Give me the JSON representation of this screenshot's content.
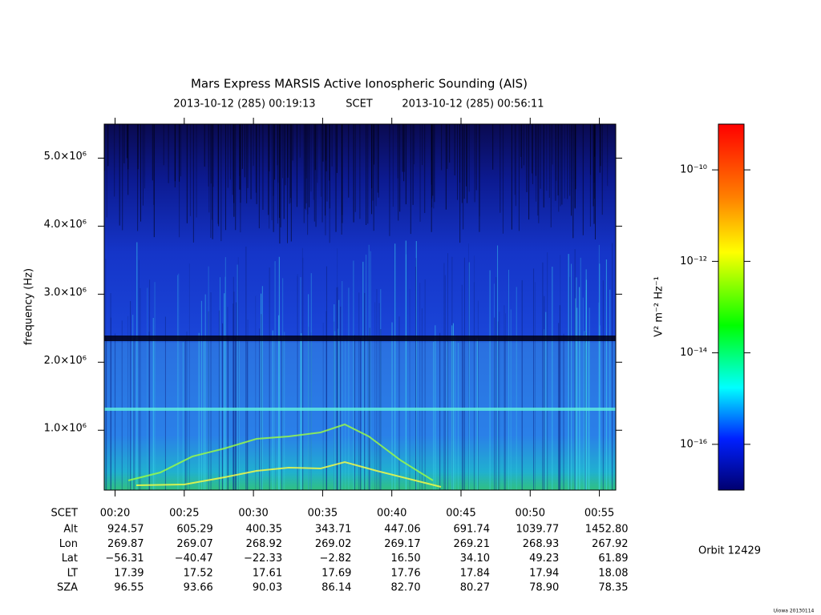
{
  "chart_data": {
    "type": "spectrogram",
    "title": "Mars Express MARSIS Active Ionospheric Sounding (AIS)",
    "time_start": "2013-10-12 (285) 00:19:13",
    "time_frame": "SCET",
    "time_end": "2013-10-12 (285) 00:56:11",
    "ylabel": "frequency (Hz)",
    "ylim": [
      120000,
      5500000
    ],
    "yticks": [
      {
        "value": 1000000,
        "label": "1.0×10⁶"
      },
      {
        "value": 2000000,
        "label": "2.0×10⁶"
      },
      {
        "value": 3000000,
        "label": "3.0×10⁶"
      },
      {
        "value": 4000000,
        "label": "4.0×10⁶"
      },
      {
        "value": 5000000,
        "label": "5.0×10⁶"
      }
    ],
    "xlabel": "SCET",
    "xlim": [
      19.2167,
      56.1833
    ],
    "xticks": [
      {
        "value": 20,
        "label": "00:20"
      },
      {
        "value": 25,
        "label": "00:25"
      },
      {
        "value": 30,
        "label": "00:30"
      },
      {
        "value": 35,
        "label": "00:35"
      },
      {
        "value": 40,
        "label": "00:40"
      },
      {
        "value": 45,
        "label": "00:45"
      },
      {
        "value": 50,
        "label": "00:50"
      },
      {
        "value": 55,
        "label": "00:55"
      }
    ],
    "ephemeris": [
      {
        "name": "Alt",
        "values": [
          "924.57",
          "605.29",
          "400.35",
          "343.71",
          "447.06",
          "691.74",
          "1039.77",
          "1452.80"
        ]
      },
      {
        "name": "Lon",
        "values": [
          "269.87",
          "269.07",
          "268.92",
          "269.02",
          "269.17",
          "269.21",
          "268.93",
          "267.92"
        ]
      },
      {
        "name": "Lat",
        "values": [
          "−56.31",
          "−40.47",
          "−22.33",
          "−2.82",
          "16.50",
          "34.10",
          "49.23",
          "61.89"
        ]
      },
      {
        "name": "LT",
        "values": [
          "17.39",
          "17.52",
          "17.61",
          "17.69",
          "17.76",
          "17.84",
          "17.94",
          "18.08"
        ]
      },
      {
        "name": "SZA",
        "values": [
          "96.55",
          "93.66",
          "90.03",
          "86.14",
          "82.70",
          "80.27",
          "78.90",
          "78.35"
        ]
      }
    ],
    "colorbar": {
      "label": "V² m⁻² Hz⁻¹",
      "log_scale": true,
      "lim": [
        1e-17,
        1e-09
      ],
      "ticks": [
        {
          "value": 1e-10,
          "label": "10⁻¹⁰"
        },
        {
          "value": 1e-12,
          "label": "10⁻¹²"
        },
        {
          "value": 1e-14,
          "label": "10⁻¹⁴"
        },
        {
          "value": 1e-16,
          "label": "10⁻¹⁶"
        }
      ]
    },
    "orbit": "Orbit 12429",
    "credit": "Uiowa 20130114"
  }
}
